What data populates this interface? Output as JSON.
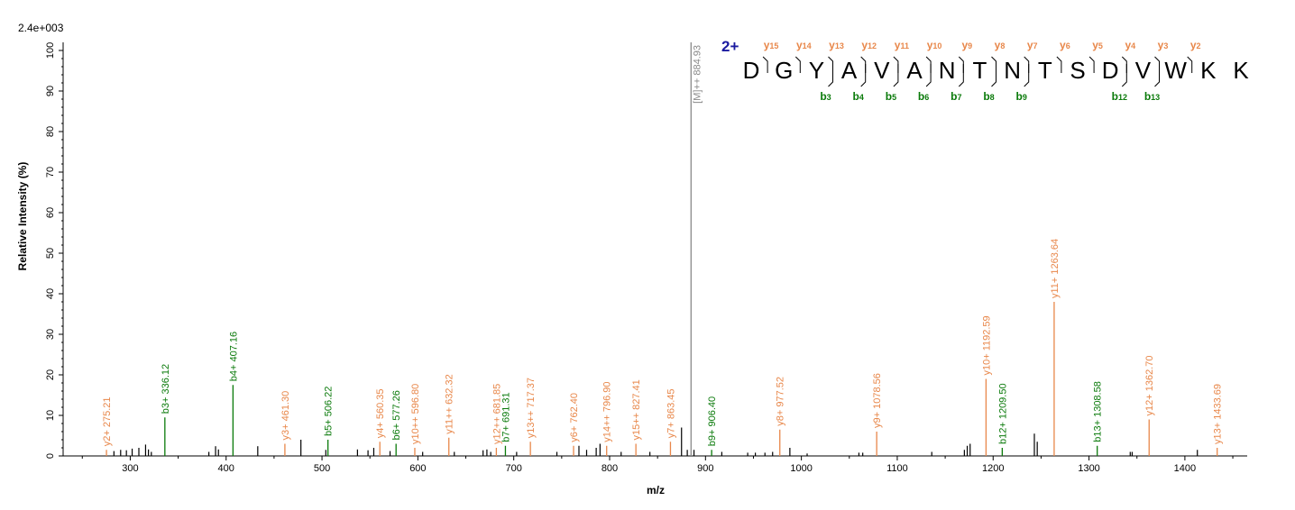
{
  "chart_data": {
    "type": "bar",
    "title": "",
    "scale_label": "2.4e+003",
    "xlabel": "m/z",
    "ylabel": "Relative   Intensity (%)",
    "xlim": [
      230,
      1465
    ],
    "ylim": [
      0,
      102
    ],
    "x_ticks": [
      300,
      400,
      500,
      600,
      700,
      800,
      900,
      1000,
      1100,
      1200,
      1300,
      1400
    ],
    "y_ticks": [
      0,
      10,
      20,
      30,
      40,
      50,
      60,
      70,
      80,
      90,
      100
    ],
    "precursor": {
      "mz": 884.93,
      "intensity": 102,
      "label": "[M]++ 884.93"
    },
    "labeled_peaks": [
      {
        "mz": 275.21,
        "intensity": 1.5,
        "label": "y2+ 275.21",
        "ion": "y"
      },
      {
        "mz": 336.12,
        "intensity": 9.5,
        "label": "b3+ 336.12",
        "ion": "b"
      },
      {
        "mz": 407.16,
        "intensity": 17.5,
        "label": "b4+ 407.16",
        "ion": "b"
      },
      {
        "mz": 461.3,
        "intensity": 3.0,
        "label": "y3+ 461.30",
        "ion": "y"
      },
      {
        "mz": 506.22,
        "intensity": 4.0,
        "label": "b5+ 506.22",
        "ion": "b"
      },
      {
        "mz": 560.35,
        "intensity": 3.5,
        "label": "y4+ 560.35",
        "ion": "y"
      },
      {
        "mz": 577.26,
        "intensity": 3.0,
        "label": "b6+ 577.26",
        "ion": "b"
      },
      {
        "mz": 596.8,
        "intensity": 2.0,
        "label": "y10++ 596.80",
        "ion": "y"
      },
      {
        "mz": 632.32,
        "intensity": 4.5,
        "label": "y11++ 632.32",
        "ion": "y"
      },
      {
        "mz": 681.85,
        "intensity": 2.0,
        "label": "y12++ 681.85",
        "ion": "y"
      },
      {
        "mz": 691.31,
        "intensity": 2.5,
        "label": "b7+ 691.31",
        "ion": "b"
      },
      {
        "mz": 717.37,
        "intensity": 3.5,
        "label": "y13++ 717.37",
        "ion": "y"
      },
      {
        "mz": 762.4,
        "intensity": 2.5,
        "label": "y6+ 762.40",
        "ion": "y"
      },
      {
        "mz": 796.9,
        "intensity": 2.5,
        "label": "y14++ 796.90",
        "ion": "y"
      },
      {
        "mz": 827.41,
        "intensity": 3.0,
        "label": "y15++ 827.41",
        "ion": "y"
      },
      {
        "mz": 863.45,
        "intensity": 3.5,
        "label": "y7+ 863.45",
        "ion": "y"
      },
      {
        "mz": 906.4,
        "intensity": 1.5,
        "label": "b9+ 906.40",
        "ion": "b"
      },
      {
        "mz": 977.52,
        "intensity": 6.5,
        "label": "y8+ 977.52",
        "ion": "y"
      },
      {
        "mz": 1078.56,
        "intensity": 6.0,
        "label": "y9+ 1078.56",
        "ion": "y"
      },
      {
        "mz": 1192.59,
        "intensity": 19.0,
        "label": "y10+ 1192.59",
        "ion": "y"
      },
      {
        "mz": 1209.5,
        "intensity": 2.0,
        "label": "b12+ 1209.50",
        "ion": "b"
      },
      {
        "mz": 1263.64,
        "intensity": 38.0,
        "label": "y11+ 1263.64",
        "ion": "y"
      },
      {
        "mz": 1308.58,
        "intensity": 2.5,
        "label": "b13+ 1308.58",
        "ion": "b"
      },
      {
        "mz": 1362.7,
        "intensity": 9.0,
        "label": "y12+ 1362.70",
        "ion": "y"
      },
      {
        "mz": 1433.69,
        "intensity": 2.0,
        "label": "y13+ 1433.69",
        "ion": "y"
      }
    ],
    "unlabeled_peaks": [
      {
        "mz": 283,
        "intensity": 1.2
      },
      {
        "mz": 290,
        "intensity": 1.5
      },
      {
        "mz": 296,
        "intensity": 1.4
      },
      {
        "mz": 302,
        "intensity": 1.8
      },
      {
        "mz": 309,
        "intensity": 2.0
      },
      {
        "mz": 316,
        "intensity": 2.8
      },
      {
        "mz": 319,
        "intensity": 1.6
      },
      {
        "mz": 322,
        "intensity": 1.0
      },
      {
        "mz": 382,
        "intensity": 1.0
      },
      {
        "mz": 389,
        "intensity": 2.4
      },
      {
        "mz": 392,
        "intensity": 1.6
      },
      {
        "mz": 433,
        "intensity": 2.4
      },
      {
        "mz": 478,
        "intensity": 4.0
      },
      {
        "mz": 504,
        "intensity": 1.5
      },
      {
        "mz": 537,
        "intensity": 1.6
      },
      {
        "mz": 548,
        "intensity": 1.4
      },
      {
        "mz": 554,
        "intensity": 2.0
      },
      {
        "mz": 571,
        "intensity": 1.2
      },
      {
        "mz": 605,
        "intensity": 1.0
      },
      {
        "mz": 638,
        "intensity": 1.0
      },
      {
        "mz": 668,
        "intensity": 1.4
      },
      {
        "mz": 672,
        "intensity": 1.6
      },
      {
        "mz": 676,
        "intensity": 1.0
      },
      {
        "mz": 703,
        "intensity": 1.0
      },
      {
        "mz": 745,
        "intensity": 1.0
      },
      {
        "mz": 768,
        "intensity": 2.5
      },
      {
        "mz": 776,
        "intensity": 1.5
      },
      {
        "mz": 786,
        "intensity": 2.0
      },
      {
        "mz": 790,
        "intensity": 3.0
      },
      {
        "mz": 812,
        "intensity": 1.0
      },
      {
        "mz": 842,
        "intensity": 1.0
      },
      {
        "mz": 875,
        "intensity": 7.0
      },
      {
        "mz": 881,
        "intensity": 1.5
      },
      {
        "mz": 888,
        "intensity": 1.5
      },
      {
        "mz": 917,
        "intensity": 1.0
      },
      {
        "mz": 944,
        "intensity": 0.8
      },
      {
        "mz": 952,
        "intensity": 0.8
      },
      {
        "mz": 962,
        "intensity": 0.8
      },
      {
        "mz": 970,
        "intensity": 1.0
      },
      {
        "mz": 988,
        "intensity": 2.0
      },
      {
        "mz": 1006,
        "intensity": 0.6
      },
      {
        "mz": 1060,
        "intensity": 0.8
      },
      {
        "mz": 1064,
        "intensity": 0.8
      },
      {
        "mz": 1136,
        "intensity": 1.0
      },
      {
        "mz": 1170,
        "intensity": 1.5
      },
      {
        "mz": 1173,
        "intensity": 2.5
      },
      {
        "mz": 1176,
        "intensity": 3.0
      },
      {
        "mz": 1243,
        "intensity": 5.5
      },
      {
        "mz": 1246,
        "intensity": 3.5
      },
      {
        "mz": 1343,
        "intensity": 1.0
      },
      {
        "mz": 1345,
        "intensity": 1.0
      },
      {
        "mz": 1413,
        "intensity": 1.5
      }
    ],
    "colors": {
      "y": "#e8874a",
      "b": "#0a7a0a",
      "precursor": "#8a8a8a",
      "other": "#000000"
    }
  },
  "peptide": {
    "charge": "2+",
    "sequence": [
      "D",
      "G",
      "Y",
      "A",
      "V",
      "A",
      "N",
      "T",
      "N",
      "T",
      "S",
      "D",
      "V",
      "W",
      "K",
      "K"
    ],
    "y_ions": [
      {
        "after": 1,
        "base": "y",
        "num": "15"
      },
      {
        "after": 2,
        "base": "y",
        "num": "14"
      },
      {
        "after": 3,
        "base": "y",
        "num": "13"
      },
      {
        "after": 4,
        "base": "y",
        "num": "12"
      },
      {
        "after": 5,
        "base": "y",
        "num": "11"
      },
      {
        "after": 6,
        "base": "y",
        "num": "10"
      },
      {
        "after": 7,
        "base": "y",
        "num": "9"
      },
      {
        "after": 8,
        "base": "y",
        "num": "8"
      },
      {
        "after": 9,
        "base": "y",
        "num": "7"
      },
      {
        "after": 10,
        "base": "y",
        "num": "6"
      },
      {
        "after": 11,
        "base": "y",
        "num": "5"
      },
      {
        "after": 12,
        "base": "y",
        "num": "4"
      },
      {
        "after": 13,
        "base": "y",
        "num": "3"
      },
      {
        "after": 14,
        "base": "y",
        "num": "2"
      }
    ],
    "b_ions": [
      {
        "after": 3,
        "base": "b",
        "num": "3"
      },
      {
        "after": 4,
        "base": "b",
        "num": "4"
      },
      {
        "after": 5,
        "base": "b",
        "num": "5"
      },
      {
        "after": 6,
        "base": "b",
        "num": "6"
      },
      {
        "after": 7,
        "base": "b",
        "num": "7"
      },
      {
        "after": 8,
        "base": "b",
        "num": "8"
      },
      {
        "after": 9,
        "base": "b",
        "num": "9"
      },
      {
        "after": 12,
        "base": "b",
        "num": "12"
      },
      {
        "after": 13,
        "base": "b",
        "num": "13"
      }
    ]
  }
}
